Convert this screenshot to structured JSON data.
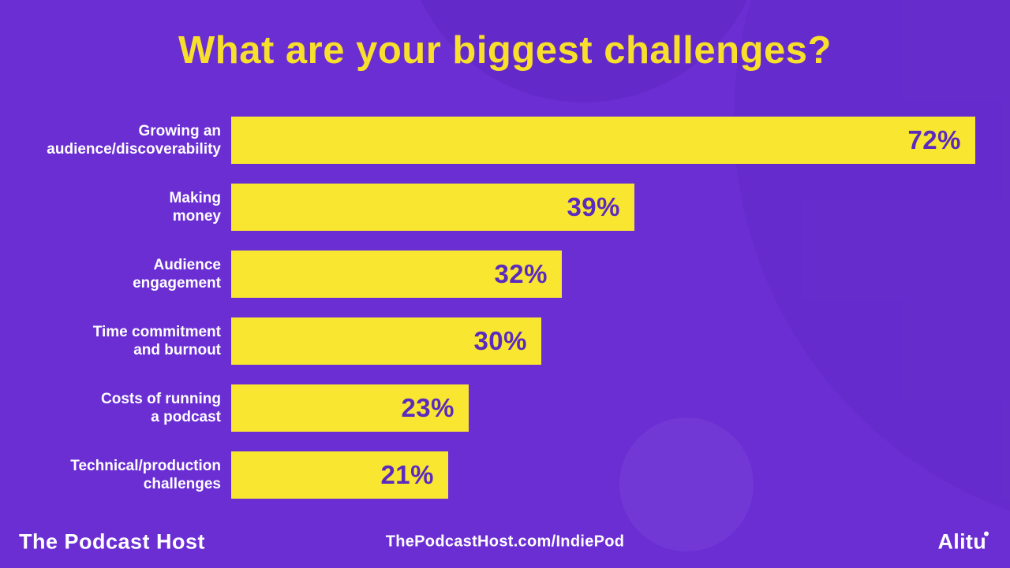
{
  "title": "What are your biggest challenges?",
  "colors": {
    "background": "#6A2ED3",
    "bar": "#F8E631",
    "title_text": "#F8DF2B",
    "value_text": "#5B2ABF",
    "label_text": "#FFFFFF"
  },
  "chart_data": {
    "type": "bar",
    "orientation": "horizontal",
    "title": "What are your biggest challenges?",
    "categories": [
      "Growing an\naudience/discoverability",
      "Making\nmoney",
      "Audience\nengagement",
      "Time commitment\nand burnout",
      "Costs of running\na podcast",
      "Technical/production\nchallenges"
    ],
    "values": [
      72,
      39,
      32,
      30,
      23,
      21
    ],
    "value_labels": [
      "72%",
      "39%",
      "32%",
      "30%",
      "23%",
      "21%"
    ],
    "unit": "%",
    "xlim": [
      0,
      75
    ],
    "grid": false,
    "legend": false,
    "value_label_position": "inside-right",
    "bar_color": "#F8E631",
    "background_color": "#6A2ED3"
  },
  "footer": {
    "brand_left": "The Podcast Host",
    "center_url": "ThePodcastHost.com/IndiePod",
    "brand_right": "Alitu"
  }
}
